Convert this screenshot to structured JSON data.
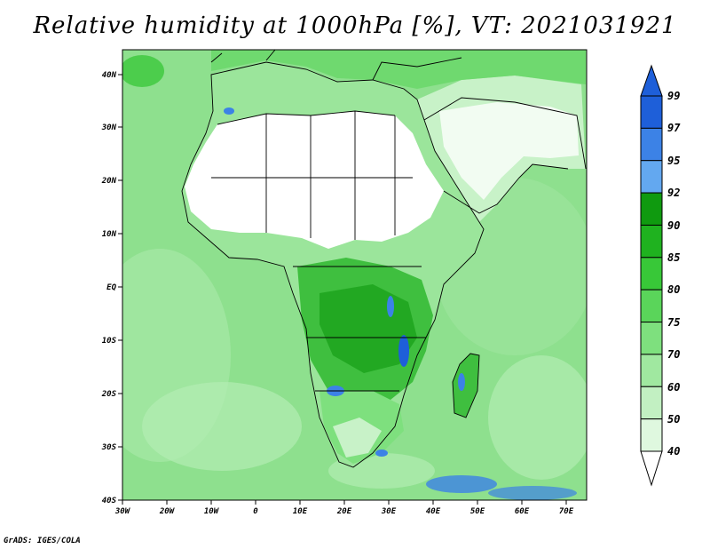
{
  "title": "Relative humidity at 1000hPa [%], VT: 2021031921",
  "credit": "GrADS: IGES/COLA",
  "map": {
    "lat_labels": [
      "40N",
      "30N",
      "20N",
      "10N",
      "EQ",
      "10S",
      "20S",
      "30S",
      "40S"
    ],
    "lon_labels": [
      "30W",
      "20W",
      "10W",
      "0",
      "10E",
      "20E",
      "30E",
      "40E",
      "50E",
      "60E",
      "70E"
    ]
  },
  "colorbar": {
    "levels": [
      "99",
      "97",
      "95",
      "92",
      "90",
      "85",
      "80",
      "75",
      "70",
      "60",
      "50",
      "40"
    ],
    "colors": [
      "#1e5fd9",
      "#3c82e6",
      "#63a8f0",
      "#0f9a0f",
      "#1fb21f",
      "#38c838",
      "#5ad55a",
      "#7ee07e",
      "#a0e8a0",
      "#c2f0c2",
      "#dff8df"
    ],
    "top_arrow_color": "#1e5fd9",
    "bottom_arrow_color": "#ffffff"
  }
}
